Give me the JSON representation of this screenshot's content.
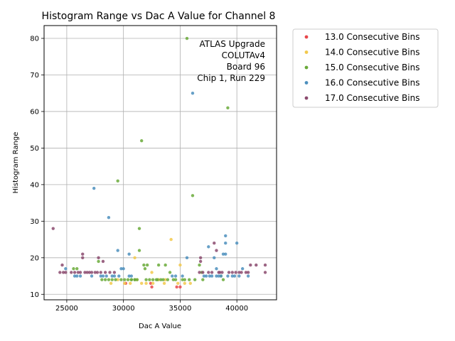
{
  "chart_data": {
    "type": "scatter",
    "title": "Histogram Range vs Dac A Value for Channel 8",
    "xlabel": "Dac A Value",
    "ylabel": "Histogram Range",
    "xlim": [
      23000,
      43500
    ],
    "ylim": [
      8.5,
      83.5
    ],
    "xticks": [
      25000,
      30000,
      35000,
      40000
    ],
    "xtick_labels": [
      "25000",
      "30000",
      "35000",
      "40000"
    ],
    "yticks": [
      10,
      20,
      30,
      40,
      50,
      60,
      70,
      80
    ],
    "ytick_labels": [
      "10",
      "20",
      "30",
      "40",
      "50",
      "60",
      "70",
      "80"
    ],
    "grid": true,
    "legend_position": "outside-right",
    "annotation": [
      "ATLAS Upgrade",
      "COLUTAv4",
      "Board 96",
      "Chip 1, Run 229"
    ],
    "series": [
      {
        "name": "13.0 Consecutive Bins",
        "color": "#e8474b",
        "points": [
          [
            32500,
            12
          ],
          [
            34700,
            12
          ],
          [
            35000,
            12
          ],
          [
            32400,
            13
          ],
          [
            30200,
            13
          ]
        ]
      },
      {
        "name": "14.0 Consecutive Bins",
        "color": "#f2c94c",
        "points": [
          [
            28900,
            13
          ],
          [
            30100,
            13
          ],
          [
            30600,
            13
          ],
          [
            31200,
            14
          ],
          [
            31600,
            13
          ],
          [
            32000,
            13
          ],
          [
            32600,
            13
          ],
          [
            33100,
            14
          ],
          [
            33600,
            13
          ],
          [
            34200,
            25
          ],
          [
            34800,
            13
          ],
          [
            35000,
            18
          ],
          [
            35400,
            13
          ],
          [
            35900,
            13
          ],
          [
            31000,
            20
          ],
          [
            32500,
            16
          ],
          [
            33700,
            14
          ],
          [
            29500,
            14
          ]
        ]
      },
      {
        "name": "15.0 Consecutive Bins",
        "color": "#6aaa3a",
        "points": [
          [
            25600,
            17
          ],
          [
            25900,
            17
          ],
          [
            27800,
            19
          ],
          [
            28100,
            14
          ],
          [
            28400,
            14
          ],
          [
            28700,
            14
          ],
          [
            29000,
            14
          ],
          [
            29300,
            14
          ],
          [
            29500,
            41
          ],
          [
            29800,
            14
          ],
          [
            30100,
            14
          ],
          [
            30400,
            14
          ],
          [
            30700,
            14
          ],
          [
            31000,
            14
          ],
          [
            31200,
            14
          ],
          [
            31400,
            28
          ],
          [
            31400,
            22
          ],
          [
            31600,
            52
          ],
          [
            31800,
            18
          ],
          [
            31900,
            17
          ],
          [
            32100,
            18
          ],
          [
            32300,
            14
          ],
          [
            32600,
            14
          ],
          [
            32900,
            14
          ],
          [
            33100,
            18
          ],
          [
            33300,
            14
          ],
          [
            33500,
            14
          ],
          [
            33700,
            18
          ],
          [
            33900,
            14
          ],
          [
            34100,
            16
          ],
          [
            34400,
            14
          ],
          [
            34600,
            14
          ],
          [
            35200,
            14
          ],
          [
            35400,
            14
          ],
          [
            35600,
            80
          ],
          [
            35800,
            14
          ],
          [
            36100,
            37
          ],
          [
            36300,
            14
          ],
          [
            36700,
            18
          ],
          [
            36900,
            16
          ],
          [
            37000,
            14
          ],
          [
            38600,
            15
          ],
          [
            38800,
            14
          ],
          [
            39200,
            61
          ],
          [
            31000,
            14
          ],
          [
            30700,
            14
          ],
          [
            32000,
            14
          ],
          [
            33000,
            14
          ]
        ]
      },
      {
        "name": "16.0 Consecutive Bins",
        "color": "#4c8fbd",
        "points": [
          [
            24900,
            17
          ],
          [
            25700,
            15
          ],
          [
            25900,
            15
          ],
          [
            26200,
            15
          ],
          [
            27200,
            15
          ],
          [
            27400,
            39
          ],
          [
            28000,
            15
          ],
          [
            28200,
            15
          ],
          [
            28500,
            15
          ],
          [
            28700,
            31
          ],
          [
            29000,
            15
          ],
          [
            29200,
            15
          ],
          [
            29500,
            22
          ],
          [
            29600,
            15
          ],
          [
            29800,
            17
          ],
          [
            30000,
            17
          ],
          [
            30500,
            21
          ],
          [
            30500,
            15
          ],
          [
            30700,
            15
          ],
          [
            34300,
            15
          ],
          [
            34600,
            15
          ],
          [
            35200,
            15
          ],
          [
            35600,
            20
          ],
          [
            36100,
            65
          ],
          [
            37100,
            15
          ],
          [
            37300,
            15
          ],
          [
            37500,
            23
          ],
          [
            37800,
            15
          ],
          [
            38000,
            20
          ],
          [
            38200,
            17
          ],
          [
            38400,
            15
          ],
          [
            38600,
            15
          ],
          [
            38800,
            21
          ],
          [
            39000,
            21
          ],
          [
            39000,
            24
          ],
          [
            39000,
            26
          ],
          [
            39200,
            15
          ],
          [
            39600,
            15
          ],
          [
            39800,
            15
          ],
          [
            40000,
            24
          ],
          [
            40200,
            15
          ],
          [
            40500,
            17
          ],
          [
            41000,
            15
          ],
          [
            37600,
            15
          ],
          [
            38200,
            15
          ]
        ]
      },
      {
        "name": "17.0 Consecutive Bins",
        "color": "#8b4a6e",
        "points": [
          [
            23800,
            28
          ],
          [
            24400,
            16
          ],
          [
            24600,
            18
          ],
          [
            24700,
            16
          ],
          [
            24900,
            16
          ],
          [
            25400,
            16
          ],
          [
            25700,
            16
          ],
          [
            26000,
            16
          ],
          [
            26200,
            16
          ],
          [
            26400,
            20
          ],
          [
            26400,
            21
          ],
          [
            26600,
            16
          ],
          [
            26800,
            16
          ],
          [
            27000,
            16
          ],
          [
            27200,
            16
          ],
          [
            27500,
            16
          ],
          [
            27700,
            16
          ],
          [
            27800,
            20
          ],
          [
            28000,
            16
          ],
          [
            28200,
            19
          ],
          [
            28400,
            16
          ],
          [
            28800,
            16
          ],
          [
            29200,
            16
          ],
          [
            36700,
            16
          ],
          [
            36800,
            19
          ],
          [
            36800,
            20
          ],
          [
            37000,
            16
          ],
          [
            37500,
            16
          ],
          [
            37800,
            16
          ],
          [
            38000,
            24
          ],
          [
            38200,
            22
          ],
          [
            38500,
            16
          ],
          [
            38700,
            16
          ],
          [
            39300,
            16
          ],
          [
            39600,
            16
          ],
          [
            39900,
            16
          ],
          [
            40200,
            16
          ],
          [
            40400,
            16
          ],
          [
            40800,
            16
          ],
          [
            41000,
            16
          ],
          [
            41200,
            18
          ],
          [
            41700,
            18
          ],
          [
            42500,
            16
          ],
          [
            42500,
            18
          ],
          [
            38400,
            16
          ]
        ]
      }
    ]
  }
}
